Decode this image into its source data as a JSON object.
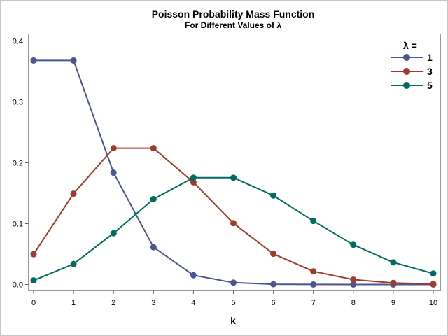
{
  "chart_data": {
    "type": "line",
    "title": "Poisson Probability Mass Function",
    "subtitle": "For Different Values of λ",
    "xlabel": "k",
    "ylabel": "",
    "xlim": [
      0,
      10
    ],
    "ylim": [
      0,
      0.4
    ],
    "x_ticks": [
      "0",
      "1",
      "2",
      "3",
      "4",
      "5",
      "6",
      "7",
      "8",
      "9",
      "10"
    ],
    "y_ticks": [
      "0.0",
      "0.1",
      "0.2",
      "0.3",
      "0.4"
    ],
    "grid": false,
    "legend": {
      "title": "λ =",
      "placement": "top-right"
    },
    "x": [
      0,
      1,
      2,
      3,
      4,
      5,
      6,
      7,
      8,
      9,
      10
    ],
    "series": [
      {
        "name": "1",
        "color": "#4a5591",
        "values": [
          0.3679,
          0.3679,
          0.1839,
          0.0613,
          0.0153,
          0.0031,
          0.0005,
          0.0001,
          0.0,
          0.0,
          0.0
        ]
      },
      {
        "name": "3",
        "color": "#a23a2e",
        "values": [
          0.0498,
          0.1494,
          0.224,
          0.224,
          0.168,
          0.1008,
          0.0504,
          0.0216,
          0.0081,
          0.0027,
          0.0008
        ]
      },
      {
        "name": "5",
        "color": "#016b61",
        "values": [
          0.0067,
          0.0337,
          0.0842,
          0.1404,
          0.1755,
          0.1755,
          0.1462,
          0.1044,
          0.0653,
          0.0363,
          0.0181
        ]
      }
    ]
  }
}
